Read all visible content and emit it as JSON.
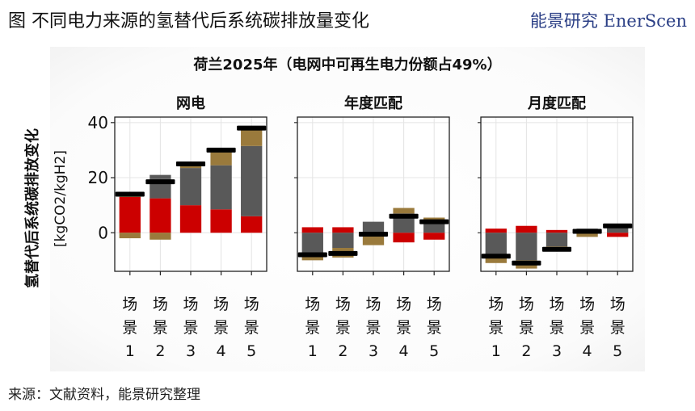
{
  "header": {
    "title": "图  不同电力来源的氢替代后系统碳排放量变化",
    "brand": "能景研究 EnerScen"
  },
  "footer": {
    "source": "来源：文献资料，能景研究整理"
  },
  "colors": {
    "grey": "#595959",
    "red": "#cc0000",
    "brown": "#9a7a3c",
    "marker": "#000000",
    "axis": "#222222",
    "grid": "#e4e4e4"
  },
  "chart_data": {
    "type": "bar",
    "stacked": true,
    "title": "荷兰2025年（电网中可再生电力份额占49%）",
    "ylabel": "氢替代后系统碳排放变化",
    "yunit": "[kgCO2/kgH2]",
    "ylim": [
      -14,
      42
    ],
    "yticks": [
      0,
      20,
      40
    ],
    "grid": true,
    "categories": [
      "场景1",
      "场景2",
      "场景3",
      "场景4",
      "场景5"
    ],
    "panels": [
      {
        "name": "网电",
        "segments": [
          [
            {
              "from": 0,
              "to": 13,
              "color": "red"
            },
            {
              "from": 13,
              "to": 14,
              "color": "brown"
            },
            {
              "from": 0,
              "to": -2,
              "color": "brown"
            }
          ],
          [
            {
              "from": 0,
              "to": 12.5,
              "color": "red"
            },
            {
              "from": 12.5,
              "to": 19.5,
              "color": "grey"
            },
            {
              "from": 19.5,
              "to": 21,
              "color": "grey"
            },
            {
              "from": 0,
              "to": -2.5,
              "color": "brown"
            }
          ],
          [
            {
              "from": 0,
              "to": 10,
              "color": "red"
            },
            {
              "from": 10,
              "to": 23.5,
              "color": "grey"
            },
            {
              "from": 23.5,
              "to": 25,
              "color": "brown"
            }
          ],
          [
            {
              "from": 0,
              "to": 8.5,
              "color": "red"
            },
            {
              "from": 8.5,
              "to": 24.5,
              "color": "grey"
            },
            {
              "from": 24.5,
              "to": 29.5,
              "color": "brown"
            }
          ],
          [
            {
              "from": 0,
              "to": 6,
              "color": "red"
            },
            {
              "from": 6,
              "to": 31.5,
              "color": "grey"
            },
            {
              "from": 31.5,
              "to": 38,
              "color": "brown"
            }
          ]
        ],
        "net": [
          14,
          18.5,
          25,
          30,
          38
        ],
        "scenario_labels": [
          [
            "场",
            "景",
            "1"
          ],
          [
            "场",
            "景",
            "2"
          ],
          [
            "场",
            "景",
            "3"
          ],
          [
            "场",
            "景",
            "4"
          ],
          [
            "场",
            "景",
            "5"
          ]
        ]
      },
      {
        "name": "年度匹配",
        "segments": [
          [
            {
              "from": 0,
              "to": 2,
              "color": "red"
            },
            {
              "from": 0,
              "to": -7.5,
              "color": "grey"
            },
            {
              "from": -7.5,
              "to": -10,
              "color": "brown"
            }
          ],
          [
            {
              "from": 0,
              "to": 2,
              "color": "red"
            },
            {
              "from": 0,
              "to": -5.5,
              "color": "grey"
            },
            {
              "from": -5.5,
              "to": -9,
              "color": "brown"
            }
          ],
          [
            {
              "from": 0,
              "to": 4,
              "color": "grey"
            },
            {
              "from": 0,
              "to": -4.5,
              "color": "brown"
            }
          ],
          [
            {
              "from": 0,
              "to": 7,
              "color": "grey"
            },
            {
              "from": 7,
              "to": 9,
              "color": "brown"
            },
            {
              "from": 0,
              "to": -3.5,
              "color": "red"
            }
          ],
          [
            {
              "from": 0,
              "to": 4.5,
              "color": "grey"
            },
            {
              "from": 4.5,
              "to": 5.5,
              "color": "brown"
            },
            {
              "from": 0,
              "to": -2.5,
              "color": "red"
            }
          ]
        ],
        "net": [
          -8,
          -7.5,
          -0.5,
          6,
          4
        ],
        "scenario_labels": [
          [
            "场",
            "景",
            "1"
          ],
          [
            "场",
            "景",
            "2"
          ],
          [
            "场",
            "景",
            "3"
          ],
          [
            "场",
            "景",
            "4"
          ],
          [
            "场",
            "景",
            "5"
          ]
        ]
      },
      {
        "name": "月度匹配",
        "segments": [
          [
            {
              "from": 0,
              "to": 1.5,
              "color": "red"
            },
            {
              "from": 0,
              "to": -8.5,
              "color": "grey"
            },
            {
              "from": -8.5,
              "to": -11,
              "color": "brown"
            }
          ],
          [
            {
              "from": 0,
              "to": 2.5,
              "color": "red"
            },
            {
              "from": 0,
              "to": -10,
              "color": "grey"
            },
            {
              "from": -10,
              "to": -13,
              "color": "brown"
            }
          ],
          [
            {
              "from": 0,
              "to": 1,
              "color": "red"
            },
            {
              "from": 0,
              "to": -5,
              "color": "grey"
            },
            {
              "from": -5,
              "to": -6.5,
              "color": "brown"
            }
          ],
          [
            {
              "from": 0,
              "to": 1.5,
              "color": "grey"
            },
            {
              "from": 0,
              "to": -1.5,
              "color": "brown"
            }
          ],
          [
            {
              "from": 0,
              "to": 2.5,
              "color": "grey"
            },
            {
              "from": 2.5,
              "to": 3,
              "color": "brown"
            },
            {
              "from": 0,
              "to": -1.5,
              "color": "red"
            }
          ]
        ],
        "net": [
          -8.5,
          -11,
          -6,
          0.5,
          2.5
        ],
        "scenario_labels": [
          [
            "场",
            "景",
            "1"
          ],
          [
            "场",
            "景",
            "2"
          ],
          [
            "场",
            "景",
            "3"
          ],
          [
            "场",
            "景",
            "4"
          ],
          [
            "场",
            "景",
            "5"
          ]
        ]
      }
    ]
  }
}
